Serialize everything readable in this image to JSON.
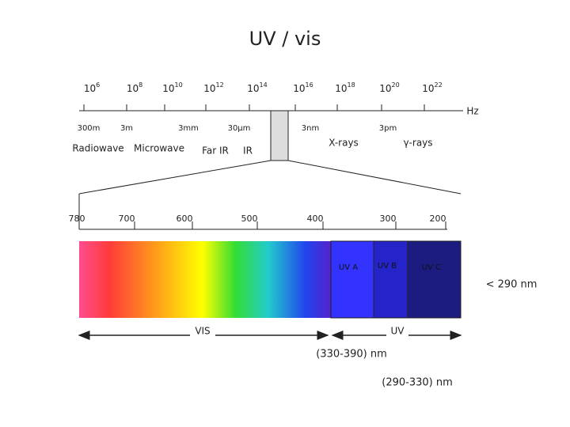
{
  "title": "UV / vis",
  "frequency": {
    "labels": [
      {
        "base": "10",
        "exp": "6"
      },
      {
        "base": "10",
        "exp": "8"
      },
      {
        "base": "10",
        "exp": "10"
      },
      {
        "base": "10",
        "exp": "12"
      },
      {
        "base": "10",
        "exp": "14"
      },
      {
        "base": "10",
        "exp": "16"
      },
      {
        "base": "10",
        "exp": "18"
      },
      {
        "base": "10",
        "exp": "20"
      },
      {
        "base": "10",
        "exp": "22"
      }
    ],
    "unit": "Hz"
  },
  "wavelengths": [
    "300m",
    "3m",
    "3mm",
    "30μm",
    "3nm",
    "3pm"
  ],
  "regions": [
    "Radiowave",
    "Microwave",
    "Far IR",
    "IR",
    "X-rays",
    "γ-rays"
  ],
  "scale": [
    "780",
    "700",
    "600",
    "500",
    "400",
    "300",
    "200"
  ],
  "bands": [
    "UV A",
    "UV B",
    "UV C"
  ],
  "uvc_note": "< 290 nm",
  "vis_label": "VIS",
  "uv_label": "UV",
  "uva_range": "(330-390) nm",
  "uvb_range": "(290-330) nm"
}
